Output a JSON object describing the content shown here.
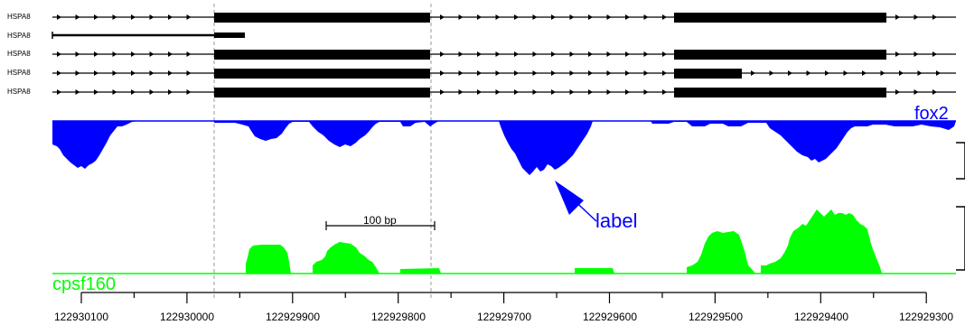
{
  "gene_tracks": [
    {
      "label": "HSPA8"
    },
    {
      "label": "HSPA8"
    },
    {
      "label": "HSPA8"
    },
    {
      "label": "HSPA8"
    },
    {
      "label": "HSPA8"
    }
  ],
  "coverage_tracks": [
    {
      "name": "fox2",
      "color": "#0000ff"
    },
    {
      "name": "cpsf160",
      "color": "#00ff00"
    }
  ],
  "scale_bar": {
    "label": "100 bp"
  },
  "annotation": {
    "label": "label",
    "color": "#0000ff"
  },
  "axis": {
    "ticks": [
      "122930100",
      "122930000",
      "122929900",
      "122929800",
      "122929700",
      "122929600",
      "122929500",
      "122929400",
      "122929300"
    ]
  },
  "colors": {
    "fox2": "#0000ff",
    "cpsf160": "#00ff00",
    "guide": "#999999",
    "gene": "#000000"
  }
}
